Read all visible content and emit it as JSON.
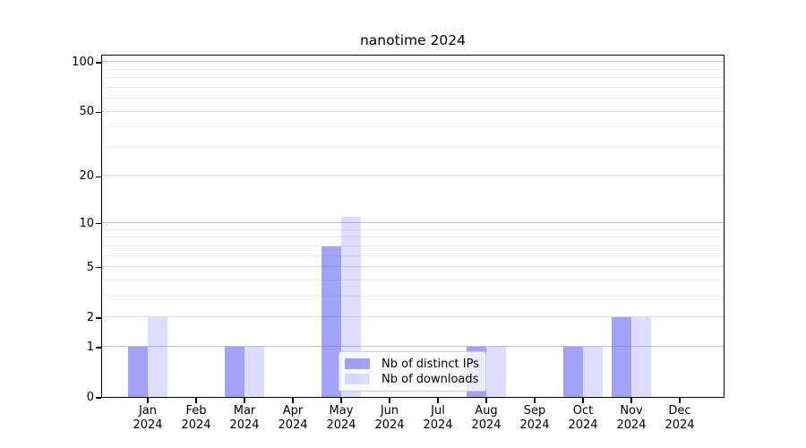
{
  "chart_data": {
    "type": "bar",
    "title": "nanotime 2024",
    "categories": [
      "Jan 2024",
      "Feb 2024",
      "Mar 2024",
      "Apr 2024",
      "May 2024",
      "Jun 2024",
      "Jul 2024",
      "Aug 2024",
      "Sep 2024",
      "Oct 2024",
      "Nov 2024",
      "Dec 2024"
    ],
    "series": [
      {
        "name": "Nb of distinct IPs",
        "values": [
          1,
          0,
          1,
          0,
          7,
          0,
          0,
          1,
          0,
          1,
          2,
          0
        ],
        "color": "rgba(100,100,245,0.60)"
      },
      {
        "name": "Nb of downloads",
        "values": [
          2,
          0,
          1,
          0,
          11,
          0,
          0,
          1,
          0,
          1,
          2,
          0
        ],
        "color": "rgba(100,100,245,0.22)"
      }
    ],
    "y_axis": {
      "scale": "log1p",
      "min": 0,
      "max": 100,
      "tick_labels": [
        0,
        1,
        2,
        5,
        10,
        20,
        50,
        100
      ],
      "emphasized_gridlines": [
        1,
        10,
        100
      ],
      "light_gridlines": [
        2,
        5,
        20,
        50
      ],
      "minor_gridlines": [
        3,
        4,
        6,
        7,
        8,
        9,
        30,
        40,
        60,
        70,
        80,
        90
      ]
    },
    "legend": {
      "position": "lower center"
    },
    "grid": true,
    "colors": {
      "grid_emphasized": "#c4c4c4",
      "grid_light": "#dedede",
      "grid_minor": "#eeeeee",
      "axis": "#000000"
    }
  }
}
